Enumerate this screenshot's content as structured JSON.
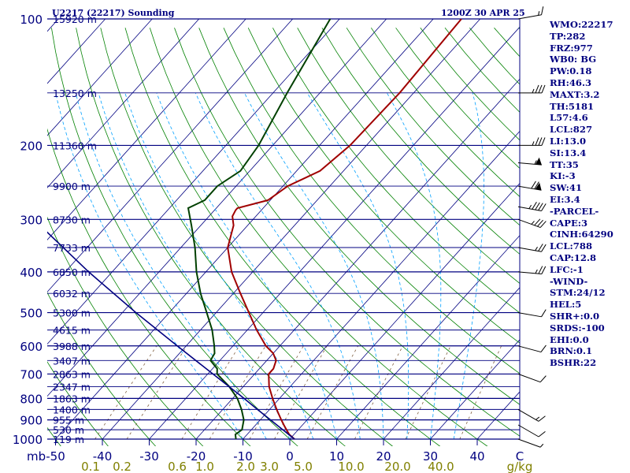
{
  "header": {
    "station": "U2217 (22217) Sounding",
    "time": "1200Z 30 APR 25"
  },
  "indices": [
    "WMO:22217",
    "TP:282",
    "FRZ:977",
    "WB0: BG",
    "PW:0.18",
    "RH:46.3",
    "MAXT:3.2",
    "TH:5181",
    "L57:4.6",
    "LCL:827",
    "LI:13.0",
    "SI:13.4",
    "TT:35",
    "KI:-3",
    "SW:41",
    "EI:3.4",
    "-PARCEL-",
    "CAPE:3",
    "CINH:64290",
    "LCL:788",
    "CAP:12.8",
    "LFC:-1",
    "-WIND-",
    "STM:24/12",
    "HEL:5",
    "SHR+:0.0",
    "SRDS:-100",
    "EHI:0.0",
    "BRN:0.1",
    "BSHR:22"
  ],
  "colors": {
    "isobar": "#000080",
    "dry_adiabat": "#008000",
    "moist_adiabat": "#00a0ff",
    "mixing_ratio": "#806040",
    "temperature": "#a00000",
    "dewpoint": "#004000",
    "parcel": "#000080",
    "labels": "#000080",
    "mixing_labels": "#808000"
  },
  "chart_data": {
    "type": "line",
    "diagram": "skew-t log-p",
    "x_unit_label": "C",
    "y_unit_label": "mb",
    "pressure_levels": [
      100,
      200,
      300,
      400,
      500,
      600,
      700,
      800,
      900,
      1000
    ],
    "height_labels": [
      {
        "p": 100,
        "label": "15920 m"
      },
      {
        "p": 150,
        "label": "13250 m"
      },
      {
        "p": 200,
        "label": "11360 m"
      },
      {
        "p": 250,
        "label": "9900 m"
      },
      {
        "p": 300,
        "label": "8730 m"
      },
      {
        "p": 350,
        "label": "7733 m"
      },
      {
        "p": 400,
        "label": "6850 m"
      },
      {
        "p": 450,
        "label": "6032 m"
      },
      {
        "p": 500,
        "label": "5300 m"
      },
      {
        "p": 550,
        "label": "4615 m"
      },
      {
        "p": 600,
        "label": "3988 m"
      },
      {
        "p": 650,
        "label": "3407 m"
      },
      {
        "p": 700,
        "label": "2863 m"
      },
      {
        "p": 750,
        "label": "2347 m"
      },
      {
        "p": 800,
        "label": "1863 m"
      },
      {
        "p": 850,
        "label": "1400 m"
      },
      {
        "p": 900,
        "label": "955 m"
      },
      {
        "p": 950,
        "label": "530 m"
      },
      {
        "p": 1000,
        "label": "119 m"
      }
    ],
    "temperature_ticks": [
      -50,
      -40,
      -30,
      -20,
      -10,
      0,
      10,
      20,
      30,
      40
    ],
    "temperature_tick_labels": [
      "-50",
      "-40",
      "-30",
      "-20",
      "-10",
      "0",
      "10",
      "20",
      "30",
      "40"
    ],
    "mixing_ratio_labels": [
      {
        "w": 0.1,
        "label": "0.1"
      },
      {
        "w": 0.2,
        "label": "0.2"
      },
      {
        "w": 0.6,
        "label": "0.6"
      },
      {
        "w": 1.0,
        "label": "1.0"
      },
      {
        "w": 2.0,
        "label": "2.0"
      },
      {
        "w": 3.0,
        "label": "3.0"
      },
      {
        "w": 5.0,
        "label": "5.0"
      },
      {
        "w": 10.0,
        "label": "10.0"
      },
      {
        "w": 20.0,
        "label": "20.0"
      },
      {
        "w": 40.0,
        "label": "40.0"
      }
    ],
    "mixing_unit": "g/kg",
    "series": [
      {
        "values": [
          {
            "p": 1000,
            "t": 1.0
          },
          {
            "p": 975,
            "t": -1.0
          },
          {
            "p": 950,
            "t": -2.5
          },
          {
            "p": 925,
            "t": -4.0
          },
          {
            "p": 900,
            "t": -5.5
          },
          {
            "p": 850,
            "t": -8.5
          },
          {
            "p": 800,
            "t": -11.5
          },
          {
            "p": 750,
            "t": -14.5
          },
          {
            "p": 700,
            "t": -17.0
          },
          {
            "p": 680,
            "t": -17.0
          },
          {
            "p": 650,
            "t": -18.0
          },
          {
            "p": 625,
            "t": -20.0
          },
          {
            "p": 600,
            "t": -23.0
          },
          {
            "p": 550,
            "t": -28.0
          },
          {
            "p": 500,
            "t": -33.0
          },
          {
            "p": 450,
            "t": -38.5
          },
          {
            "p": 400,
            "t": -44.5
          },
          {
            "p": 350,
            "t": -50.0
          },
          {
            "p": 310,
            "t": -53.0
          },
          {
            "p": 295,
            "t": -55.0
          },
          {
            "p": 285,
            "t": -55.5
          },
          {
            "p": 282,
            "t": -55.5
          },
          {
            "p": 270,
            "t": -50.5
          },
          {
            "p": 250,
            "t": -49.0
          },
          {
            "p": 230,
            "t": -45.0
          },
          {
            "p": 200,
            "t": -43.5
          },
          {
            "p": 150,
            "t": -43.0
          },
          {
            "p": 100,
            "t": -44.0
          }
        ]
      },
      {
        "values": [
          {
            "p": 1000,
            "t": -11.5
          },
          {
            "p": 975,
            "t": -12.5
          },
          {
            "p": 950,
            "t": -12.0
          },
          {
            "p": 900,
            "t": -13.5
          },
          {
            "p": 850,
            "t": -16.0
          },
          {
            "p": 800,
            "t": -19.0
          },
          {
            "p": 750,
            "t": -23.0
          },
          {
            "p": 700,
            "t": -28.0
          },
          {
            "p": 680,
            "t": -29.0
          },
          {
            "p": 650,
            "t": -32.0
          },
          {
            "p": 625,
            "t": -32.5
          },
          {
            "p": 600,
            "t": -34.0
          },
          {
            "p": 550,
            "t": -37.5
          },
          {
            "p": 500,
            "t": -42.0
          },
          {
            "p": 450,
            "t": -47.0
          },
          {
            "p": 400,
            "t": -52.0
          },
          {
            "p": 350,
            "t": -57.0
          },
          {
            "p": 310,
            "t": -62.0
          },
          {
            "p": 282,
            "t": -66.0
          },
          {
            "p": 270,
            "t": -64.0
          },
          {
            "p": 250,
            "t": -64.0
          },
          {
            "p": 230,
            "t": -62.0
          },
          {
            "p": 200,
            "t": -63.0
          },
          {
            "p": 150,
            "t": -67.0
          },
          {
            "p": 100,
            "t": -72.0
          }
        ]
      },
      {
        "values": [
          {
            "p": 1000,
            "t": 1.0
          },
          {
            "p": 950,
            "t": -3.3
          },
          {
            "p": 900,
            "t": -7.8
          },
          {
            "p": 850,
            "t": -12.6
          },
          {
            "p": 800,
            "t": -17.6
          },
          {
            "p": 700,
            "t": -28.9
          },
          {
            "p": 600,
            "t": -41.9
          },
          {
            "p": 500,
            "t": -57.1
          },
          {
            "p": 400,
            "t": -75.0
          },
          {
            "p": 300,
            "t": -96.8
          },
          {
            "p": 200,
            "t": -125.0
          },
          {
            "p": 150,
            "t": -142.0
          }
        ]
      }
    ],
    "wind_barbs": [
      {
        "p": 1000,
        "dir": 290,
        "spd": 5
      },
      {
        "p": 925,
        "dir": 300,
        "spd": 10
      },
      {
        "p": 850,
        "dir": 300,
        "spd": 15
      },
      {
        "p": 700,
        "dir": 290,
        "spd": 10
      },
      {
        "p": 600,
        "dir": 285,
        "spd": 10
      },
      {
        "p": 500,
        "dir": 280,
        "spd": 10
      },
      {
        "p": 400,
        "dir": 275,
        "spd": 25
      },
      {
        "p": 350,
        "dir": 280,
        "spd": 25
      },
      {
        "p": 300,
        "dir": 290,
        "spd": 35
      },
      {
        "p": 280,
        "dir": 280,
        "spd": 45
      },
      {
        "p": 250,
        "dir": 280,
        "spd": 70
      },
      {
        "p": 220,
        "dir": 275,
        "spd": 55
      },
      {
        "p": 200,
        "dir": 270,
        "spd": 35
      },
      {
        "p": 150,
        "dir": 270,
        "spd": 35
      },
      {
        "p": 100,
        "dir": 260,
        "spd": 15
      }
    ]
  }
}
